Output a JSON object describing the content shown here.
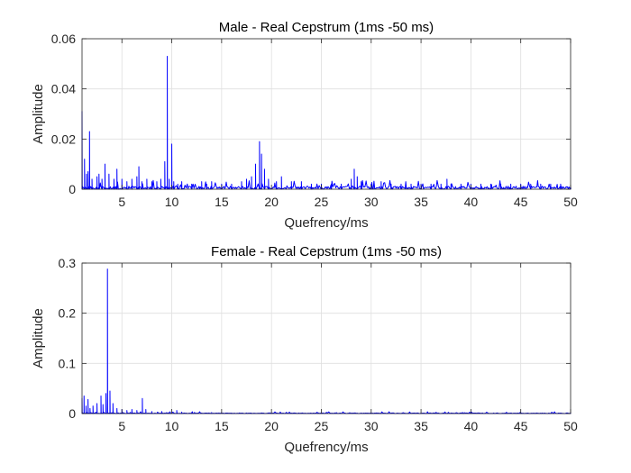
{
  "chart_data": [
    {
      "type": "line",
      "title": "Male - Real Cepstrum (1ms -50 ms)",
      "xlabel": "Quefrency/ms",
      "ylabel": "Amplitude",
      "xlim": [
        1,
        50
      ],
      "ylim": [
        0,
        0.06
      ],
      "xticks": [
        5,
        10,
        15,
        20,
        25,
        30,
        35,
        40,
        45,
        50
      ],
      "yticks": [
        0,
        0.02,
        0.04,
        0.06
      ],
      "ytick_labels": [
        "0",
        "0.02",
        "0.04",
        "0.06"
      ],
      "grid": true,
      "line_color": "#0000ff",
      "peaks": [
        {
          "x": 1.0,
          "y": 0.031
        },
        {
          "x": 1.25,
          "y": 0.012
        },
        {
          "x": 1.45,
          "y": 0.006
        },
        {
          "x": 1.6,
          "y": 0.007
        },
        {
          "x": 1.75,
          "y": 0.023
        },
        {
          "x": 2.0,
          "y": 0.004
        },
        {
          "x": 2.5,
          "y": 0.005
        },
        {
          "x": 2.7,
          "y": 0.006
        },
        {
          "x": 3.0,
          "y": 0.004
        },
        {
          "x": 3.3,
          "y": 0.01
        },
        {
          "x": 3.7,
          "y": 0.006
        },
        {
          "x": 4.2,
          "y": 0.004
        },
        {
          "x": 4.5,
          "y": 0.008
        },
        {
          "x": 5.0,
          "y": 0.004
        },
        {
          "x": 5.5,
          "y": 0.003
        },
        {
          "x": 6.0,
          "y": 0.004
        },
        {
          "x": 6.5,
          "y": 0.005
        },
        {
          "x": 6.7,
          "y": 0.009
        },
        {
          "x": 7.0,
          "y": 0.003
        },
        {
          "x": 7.5,
          "y": 0.004
        },
        {
          "x": 8.0,
          "y": 0.003
        },
        {
          "x": 8.5,
          "y": 0.003
        },
        {
          "x": 8.9,
          "y": 0.004
        },
        {
          "x": 9.3,
          "y": 0.011
        },
        {
          "x": 9.55,
          "y": 0.053
        },
        {
          "x": 9.75,
          "y": 0.004
        },
        {
          "x": 10.0,
          "y": 0.018
        },
        {
          "x": 10.2,
          "y": 0.003
        },
        {
          "x": 10.6,
          "y": 0.002
        },
        {
          "x": 11.0,
          "y": 0.003
        },
        {
          "x": 12.0,
          "y": 0.002
        },
        {
          "x": 13.0,
          "y": 0.003
        },
        {
          "x": 13.5,
          "y": 0.002
        },
        {
          "x": 14.0,
          "y": 0.003
        },
        {
          "x": 15.0,
          "y": 0.002
        },
        {
          "x": 16.0,
          "y": 0.002
        },
        {
          "x": 17.0,
          "y": 0.003
        },
        {
          "x": 17.5,
          "y": 0.004
        },
        {
          "x": 18.0,
          "y": 0.005
        },
        {
          "x": 18.4,
          "y": 0.01
        },
        {
          "x": 18.8,
          "y": 0.019
        },
        {
          "x": 19.0,
          "y": 0.014
        },
        {
          "x": 19.3,
          "y": 0.008
        },
        {
          "x": 19.7,
          "y": 0.004
        },
        {
          "x": 20.5,
          "y": 0.003
        },
        {
          "x": 21.0,
          "y": 0.005
        },
        {
          "x": 22.0,
          "y": 0.003
        },
        {
          "x": 23.0,
          "y": 0.003
        },
        {
          "x": 24.0,
          "y": 0.002
        },
        {
          "x": 25.0,
          "y": 0.002
        },
        {
          "x": 26.0,
          "y": 0.002
        },
        {
          "x": 27.0,
          "y": 0.002
        },
        {
          "x": 28.0,
          "y": 0.004
        },
        {
          "x": 28.3,
          "y": 0.008
        },
        {
          "x": 28.6,
          "y": 0.005
        },
        {
          "x": 29.0,
          "y": 0.003
        },
        {
          "x": 30.0,
          "y": 0.002
        },
        {
          "x": 31.0,
          "y": 0.003
        },
        {
          "x": 32.0,
          "y": 0.002
        },
        {
          "x": 33.0,
          "y": 0.002
        },
        {
          "x": 34.0,
          "y": 0.002
        },
        {
          "x": 35.0,
          "y": 0.002
        },
        {
          "x": 36.0,
          "y": 0.002
        },
        {
          "x": 37.0,
          "y": 0.002
        },
        {
          "x": 37.6,
          "y": 0.004
        },
        {
          "x": 38.0,
          "y": 0.002
        },
        {
          "x": 39.0,
          "y": 0.002
        },
        {
          "x": 40.0,
          "y": 0.002
        },
        {
          "x": 41.0,
          "y": 0.002
        },
        {
          "x": 42.0,
          "y": 0.002
        },
        {
          "x": 43.0,
          "y": 0.002
        },
        {
          "x": 44.0,
          "y": 0.002
        },
        {
          "x": 45.0,
          "y": 0.002
        },
        {
          "x": 46.0,
          "y": 0.002
        },
        {
          "x": 47.0,
          "y": 0.002
        },
        {
          "x": 48.0,
          "y": 0.002
        },
        {
          "x": 49.0,
          "y": 0.002
        },
        {
          "x": 50.0,
          "y": 0.001
        }
      ]
    },
    {
      "type": "line",
      "title": "Female - Real Cepstrum (1ms -50 ms)",
      "xlabel": "Quefrency/ms",
      "ylabel": "Amplitude",
      "xlim": [
        1,
        50
      ],
      "ylim": [
        0,
        0.3
      ],
      "xticks": [
        5,
        10,
        15,
        20,
        25,
        30,
        35,
        40,
        45,
        50
      ],
      "yticks": [
        0,
        0.1,
        0.2,
        0.3
      ],
      "ytick_labels": [
        "0",
        "0.1",
        "0.2",
        "0.3"
      ],
      "grid": true,
      "line_color": "#0000ff",
      "peaks": [
        {
          "x": 1.0,
          "y": 0.03
        },
        {
          "x": 1.2,
          "y": 0.035
        },
        {
          "x": 1.4,
          "y": 0.015
        },
        {
          "x": 1.6,
          "y": 0.028
        },
        {
          "x": 1.8,
          "y": 0.01
        },
        {
          "x": 2.1,
          "y": 0.015
        },
        {
          "x": 2.5,
          "y": 0.02
        },
        {
          "x": 2.9,
          "y": 0.035
        },
        {
          "x": 3.1,
          "y": 0.018
        },
        {
          "x": 3.4,
          "y": 0.04
        },
        {
          "x": 3.55,
          "y": 0.288
        },
        {
          "x": 3.8,
          "y": 0.045
        },
        {
          "x": 4.1,
          "y": 0.02
        },
        {
          "x": 4.5,
          "y": 0.01
        },
        {
          "x": 5.0,
          "y": 0.008
        },
        {
          "x": 5.5,
          "y": 0.006
        },
        {
          "x": 6.0,
          "y": 0.008
        },
        {
          "x": 6.5,
          "y": 0.006
        },
        {
          "x": 7.05,
          "y": 0.03
        },
        {
          "x": 7.4,
          "y": 0.008
        },
        {
          "x": 8.0,
          "y": 0.004
        },
        {
          "x": 9.0,
          "y": 0.004
        },
        {
          "x": 10.5,
          "y": 0.006
        },
        {
          "x": 11.0,
          "y": 0.003
        },
        {
          "x": 12.0,
          "y": 0.002
        },
        {
          "x": 14.0,
          "y": 0.002
        },
        {
          "x": 16.0,
          "y": 0.001
        },
        {
          "x": 18.0,
          "y": 0.001
        },
        {
          "x": 20.0,
          "y": 0.001
        },
        {
          "x": 25.0,
          "y": 0.001
        },
        {
          "x": 30.0,
          "y": 0.001
        },
        {
          "x": 35.0,
          "y": 0.001
        },
        {
          "x": 40.0,
          "y": 0.001
        },
        {
          "x": 45.0,
          "y": 0.001
        },
        {
          "x": 50.0,
          "y": 0.001
        }
      ]
    }
  ]
}
